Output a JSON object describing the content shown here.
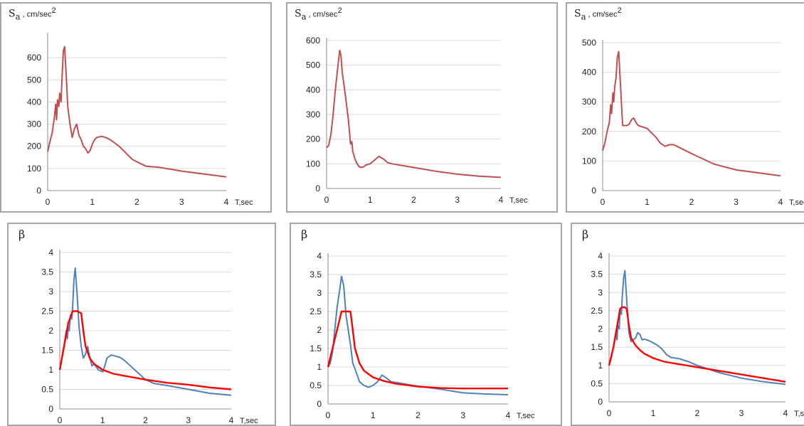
{
  "chart_data": [
    {
      "type": "line",
      "ylabel_symbol": "S",
      "ylabel_sub": "a",
      "ylabel_unit": " , cm/sec",
      "ylabel_sup": "2",
      "xlabel": "T,sec",
      "xlim": [
        0,
        4
      ],
      "ylim": [
        0,
        700
      ],
      "xticks": [
        "0",
        "1",
        "2",
        "3",
        "4"
      ],
      "yticks": [
        "0",
        "100",
        "200",
        "300",
        "400",
        "500",
        "600"
      ],
      "grid": true,
      "series": [
        {
          "color": "#c0504d",
          "x": [
            0,
            0.05,
            0.1,
            0.15,
            0.18,
            0.2,
            0.22,
            0.25,
            0.27,
            0.3,
            0.32,
            0.35,
            0.38,
            0.42,
            0.45,
            0.5,
            0.55,
            0.6,
            0.65,
            0.7,
            0.75,
            0.8,
            0.85,
            0.9,
            0.95,
            1.0,
            1.05,
            1.1,
            1.2,
            1.3,
            1.4,
            1.5,
            1.6,
            1.7,
            1.8,
            1.9,
            2.0,
            2.2,
            2.5,
            2.8,
            3.0,
            3.5,
            4.0
          ],
          "y": [
            175,
            220,
            260,
            330,
            390,
            320,
            410,
            380,
            440,
            400,
            500,
            630,
            650,
            500,
            380,
            300,
            240,
            280,
            300,
            250,
            230,
            200,
            190,
            170,
            180,
            210,
            230,
            240,
            245,
            240,
            230,
            215,
            200,
            180,
            160,
            140,
            130,
            110,
            105,
            95,
            88,
            75,
            62
          ]
        }
      ]
    },
    {
      "type": "line",
      "ylabel_symbol": "S",
      "ylabel_sub": "a",
      "ylabel_unit": " , cm/sec",
      "ylabel_sup": "2",
      "xlabel": "T,sec",
      "xlim": [
        0,
        4
      ],
      "ylim": [
        0,
        600
      ],
      "xticks": [
        "0",
        "1",
        "2",
        "3",
        "4"
      ],
      "yticks": [
        "0",
        "100",
        "200",
        "300",
        "400",
        "500",
        "600"
      ],
      "grid": true,
      "series": [
        {
          "color": "#c0504d",
          "x": [
            0,
            0.05,
            0.1,
            0.15,
            0.2,
            0.25,
            0.3,
            0.33,
            0.36,
            0.4,
            0.45,
            0.5,
            0.55,
            0.58,
            0.6,
            0.65,
            0.7,
            0.75,
            0.8,
            0.85,
            0.9,
            1.0,
            1.1,
            1.2,
            1.3,
            1.4,
            1.5,
            2.0,
            2.5,
            3.0,
            3.5,
            4.0
          ],
          "y": [
            165,
            175,
            220,
            300,
            400,
            480,
            560,
            540,
            470,
            420,
            350,
            280,
            180,
            190,
            150,
            120,
            100,
            88,
            85,
            88,
            95,
            100,
            115,
            130,
            120,
            105,
            100,
            85,
            70,
            58,
            50,
            45
          ]
        }
      ]
    },
    {
      "type": "line",
      "ylabel_symbol": "S",
      "ylabel_sub": "a",
      "ylabel_unit": " , cm/sec",
      "ylabel_sup": "2",
      "xlabel": "T,sec",
      "xlim": [
        0,
        4
      ],
      "ylim": [
        0,
        500
      ],
      "xticks": [
        "0",
        "1",
        "2",
        "3",
        "4"
      ],
      "yticks": [
        "0",
        "100",
        "200",
        "300",
        "400",
        "500"
      ],
      "grid": true,
      "series": [
        {
          "color": "#c0504d",
          "x": [
            0,
            0.05,
            0.1,
            0.15,
            0.18,
            0.2,
            0.23,
            0.25,
            0.27,
            0.3,
            0.33,
            0.36,
            0.4,
            0.45,
            0.55,
            0.6,
            0.65,
            0.7,
            0.75,
            0.8,
            0.9,
            1.0,
            1.1,
            1.2,
            1.3,
            1.4,
            1.5,
            1.6,
            1.8,
            2.0,
            2.5,
            3.0,
            3.5,
            4.0
          ],
          "y": [
            135,
            160,
            200,
            230,
            290,
            260,
            330,
            300,
            350,
            380,
            450,
            470,
            360,
            220,
            220,
            225,
            240,
            245,
            230,
            220,
            215,
            210,
            195,
            180,
            160,
            150,
            155,
            155,
            140,
            125,
            90,
            70,
            60,
            50
          ]
        }
      ]
    },
    {
      "type": "line",
      "ylabel_symbol": "β",
      "xlabel": "T,sec",
      "xlim": [
        0,
        4
      ],
      "ylim": [
        0,
        4
      ],
      "xticks": [
        "0",
        "1",
        "2",
        "3",
        "4"
      ],
      "yticks": [
        "0",
        "0.5",
        "1",
        "1.5",
        "2",
        "2.5",
        "3",
        "3.5",
        "4"
      ],
      "grid": true,
      "series": [
        {
          "color": "#4f81bd",
          "x": [
            0,
            0.05,
            0.1,
            0.15,
            0.18,
            0.2,
            0.22,
            0.25,
            0.28,
            0.3,
            0.33,
            0.36,
            0.4,
            0.45,
            0.5,
            0.55,
            0.6,
            0.65,
            0.7,
            0.75,
            0.8,
            0.9,
            1.0,
            1.05,
            1.1,
            1.2,
            1.3,
            1.4,
            1.5,
            1.6,
            1.8,
            2.0,
            2.2,
            2.5,
            3.0,
            3.5,
            4.0
          ],
          "y": [
            1.0,
            1.3,
            1.6,
            2.0,
            1.8,
            2.1,
            2.0,
            2.4,
            2.3,
            2.6,
            3.3,
            3.6,
            3.0,
            2.1,
            1.6,
            1.3,
            1.4,
            1.6,
            1.3,
            1.1,
            1.15,
            1.0,
            0.95,
            1.1,
            1.3,
            1.38,
            1.35,
            1.32,
            1.25,
            1.15,
            0.95,
            0.75,
            0.65,
            0.6,
            0.5,
            0.4,
            0.35
          ]
        },
        {
          "color": "#ff0000",
          "x": [
            0,
            0.1,
            0.2,
            0.3,
            0.4,
            0.5,
            0.55,
            0.6,
            0.7,
            0.8,
            1.0,
            1.25,
            1.5,
            2.0,
            2.5,
            3.0,
            3.5,
            4.0
          ],
          "y": [
            1.0,
            1.6,
            2.2,
            2.5,
            2.5,
            2.45,
            2.0,
            1.6,
            1.3,
            1.15,
            1.0,
            0.9,
            0.85,
            0.75,
            0.67,
            0.62,
            0.55,
            0.5
          ]
        }
      ]
    },
    {
      "type": "line",
      "ylabel_symbol": "β",
      "xlabel": "T,sec",
      "xlim": [
        0,
        4
      ],
      "ylim": [
        0,
        4
      ],
      "xticks": [
        "0",
        "1",
        "2",
        "3",
        "4"
      ],
      "yticks": [
        "0",
        "0.5",
        "1",
        "1.5",
        "2",
        "2.5",
        "3",
        "3.5",
        "4"
      ],
      "grid": true,
      "series": [
        {
          "color": "#4f81bd",
          "x": [
            0,
            0.05,
            0.1,
            0.15,
            0.2,
            0.25,
            0.3,
            0.35,
            0.4,
            0.45,
            0.5,
            0.55,
            0.6,
            0.7,
            0.8,
            0.9,
            1.0,
            1.1,
            1.2,
            1.3,
            1.4,
            1.5,
            1.8,
            2.0,
            2.5,
            3.0,
            3.5,
            4.0
          ],
          "y": [
            1.0,
            1.1,
            1.4,
            2.0,
            2.6,
            3.0,
            3.45,
            3.2,
            2.4,
            2.0,
            1.6,
            1.1,
            0.95,
            0.6,
            0.5,
            0.45,
            0.5,
            0.6,
            0.78,
            0.7,
            0.6,
            0.58,
            0.52,
            0.48,
            0.4,
            0.3,
            0.27,
            0.25
          ]
        },
        {
          "color": "#ff0000",
          "x": [
            0,
            0.1,
            0.2,
            0.3,
            0.4,
            0.5,
            0.55,
            0.6,
            0.7,
            0.8,
            1.0,
            1.25,
            1.5,
            2.0,
            2.5,
            3.0,
            3.5,
            4.0
          ],
          "y": [
            1.0,
            1.5,
            2.0,
            2.5,
            2.5,
            2.5,
            2.0,
            1.5,
            1.1,
            0.9,
            0.72,
            0.62,
            0.55,
            0.47,
            0.43,
            0.42,
            0.42,
            0.42
          ]
        }
      ]
    },
    {
      "type": "line",
      "ylabel_symbol": "β",
      "xlabel": "T,sec",
      "xlim": [
        0,
        4
      ],
      "ylim": [
        0,
        4
      ],
      "xticks": [
        "0",
        "1",
        "2",
        "3",
        "4"
      ],
      "yticks": [
        "0",
        "0.5",
        "1",
        "1.5",
        "2",
        "2.5",
        "3",
        "3.5",
        "4"
      ],
      "grid": true,
      "series": [
        {
          "color": "#4f81bd",
          "x": [
            0,
            0.05,
            0.1,
            0.15,
            0.18,
            0.2,
            0.23,
            0.25,
            0.28,
            0.3,
            0.33,
            0.36,
            0.4,
            0.45,
            0.5,
            0.55,
            0.6,
            0.65,
            0.7,
            0.75,
            0.8,
            0.9,
            1.0,
            1.1,
            1.2,
            1.3,
            1.4,
            1.5,
            1.6,
            1.8,
            2.0,
            2.5,
            3.0,
            3.5,
            4.0
          ],
          "y": [
            1.0,
            1.2,
            1.5,
            1.9,
            1.7,
            2.1,
            2.0,
            2.5,
            2.4,
            2.9,
            3.4,
            3.6,
            2.8,
            1.9,
            1.65,
            1.7,
            1.75,
            1.9,
            1.85,
            1.7,
            1.72,
            1.68,
            1.62,
            1.55,
            1.45,
            1.3,
            1.22,
            1.2,
            1.18,
            1.1,
            1.0,
            0.8,
            0.65,
            0.55,
            0.48
          ]
        },
        {
          "color": "#ff0000",
          "x": [
            0,
            0.1,
            0.2,
            0.25,
            0.3,
            0.35,
            0.4,
            0.45,
            0.5,
            0.6,
            0.7,
            0.8,
            1.0,
            1.25,
            1.5,
            2.0,
            2.5,
            3.0,
            3.5,
            4.0
          ],
          "y": [
            1.0,
            1.5,
            2.2,
            2.55,
            2.6,
            2.6,
            2.55,
            2.1,
            1.75,
            1.55,
            1.42,
            1.32,
            1.2,
            1.1,
            1.05,
            0.95,
            0.85,
            0.75,
            0.65,
            0.55
          ]
        }
      ]
    }
  ]
}
